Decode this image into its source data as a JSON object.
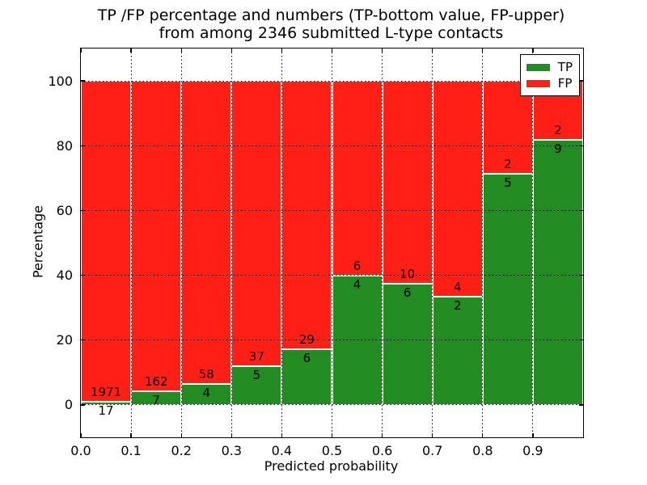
{
  "chart_data": {
    "type": "bar",
    "stacked": true,
    "title_lines": [
      "TP /FP percentage and numbers (TP-bottom value, FP-upper)",
      "from among 2346 submitted L-type contacts"
    ],
    "xlabel": "Predicted probability",
    "ylabel": "Percentage",
    "xlim": [
      0.0,
      1.0
    ],
    "ylim": [
      -10,
      110
    ],
    "x_tick_labels": [
      "0.0",
      "0.1",
      "0.2",
      "0.3",
      "0.4",
      "0.5",
      "0.6",
      "0.7",
      "0.8",
      "0.9"
    ],
    "y_ticks": [
      0,
      20,
      40,
      60,
      80,
      100
    ],
    "grid": "dotted",
    "bin_width": 0.1,
    "total_contacts": 2346,
    "bins": [
      {
        "range": [
          0.0,
          0.1
        ],
        "tp": 17,
        "fp": 1971,
        "tp_percent": 0.86,
        "fp_percent": 99.14
      },
      {
        "range": [
          0.1,
          0.2
        ],
        "tp": 7,
        "fp": 162,
        "tp_percent": 4.14,
        "fp_percent": 95.86
      },
      {
        "range": [
          0.2,
          0.3
        ],
        "tp": 4,
        "fp": 58,
        "tp_percent": 6.45,
        "fp_percent": 93.55
      },
      {
        "range": [
          0.3,
          0.4
        ],
        "tp": 5,
        "fp": 37,
        "tp_percent": 11.9,
        "fp_percent": 88.1
      },
      {
        "range": [
          0.4,
          0.5
        ],
        "tp": 6,
        "fp": 29,
        "tp_percent": 17.14,
        "fp_percent": 82.86
      },
      {
        "range": [
          0.5,
          0.6
        ],
        "tp": 4,
        "fp": 6,
        "tp_percent": 40.0,
        "fp_percent": 60.0
      },
      {
        "range": [
          0.6,
          0.7
        ],
        "tp": 6,
        "fp": 10,
        "tp_percent": 37.5,
        "fp_percent": 62.5
      },
      {
        "range": [
          0.7,
          0.8
        ],
        "tp": 2,
        "fp": 4,
        "tp_percent": 33.33,
        "fp_percent": 66.67
      },
      {
        "range": [
          0.8,
          0.9
        ],
        "tp": 5,
        "fp": 2,
        "tp_percent": 71.43,
        "fp_percent": 28.57
      },
      {
        "range": [
          0.9,
          1.0
        ],
        "tp": 9,
        "fp": 2,
        "tp_percent": 81.82,
        "fp_percent": 18.18
      }
    ],
    "legend": {
      "position": "upper right",
      "entries": [
        {
          "label": "TP",
          "color": "#228b22"
        },
        {
          "label": "FP",
          "color": "#ff1f14"
        }
      ]
    },
    "colors": {
      "tp": "#228b22",
      "fp": "#ff1f14",
      "grid": "#000000",
      "text": "#000000",
      "background": "#ffffff",
      "bar_edge": "#ffffff"
    }
  }
}
